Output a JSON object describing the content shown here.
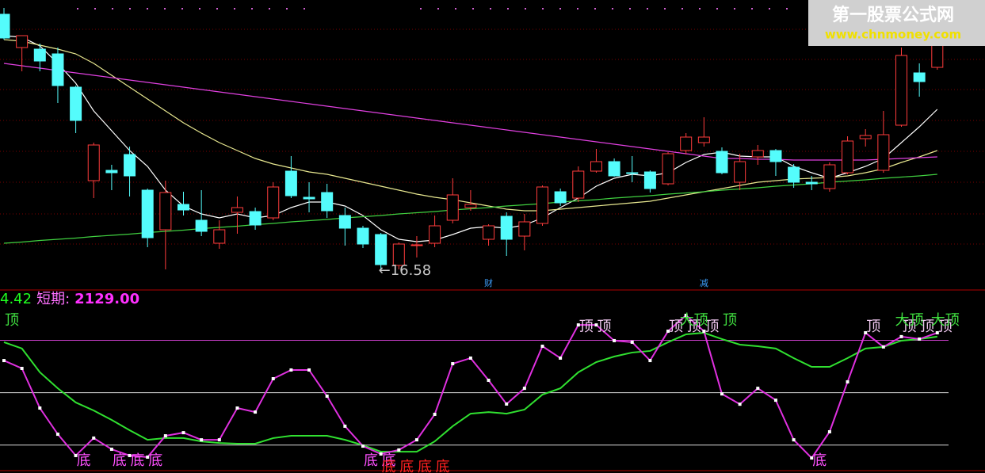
{
  "watermark": {
    "title": "第一股票公式网",
    "url": "www.chnmoney.com"
  },
  "chart_data": [
    {
      "type": "candlestick",
      "ylim": [
        16.12,
        23.42
      ],
      "up_color": "#ff3c3c",
      "down_color": "#54fcfc",
      "open": [
        23.06,
        22.22,
        22.18,
        22.06,
        21.22,
        18.86,
        19.12,
        19.52,
        18.62,
        17.62,
        18.26,
        17.86,
        17.28,
        18.06,
        18.08,
        17.92,
        19.1,
        18.44,
        18.56,
        17.98,
        17.66,
        17.5,
        16.72,
        17.22,
        17.28,
        17.86,
        18.18,
        17.38,
        17.96,
        17.46,
        17.78,
        18.58,
        18.42,
        19.1,
        19.34,
        19.06,
        19.08,
        18.78,
        19.62,
        19.82,
        19.6,
        18.82,
        19.46,
        19.62,
        19.2,
        18.82,
        18.66,
        19.06,
        19.92,
        19.12,
        20.26,
        21.58,
        21.72
      ],
      "high": [
        23.22,
        22.52,
        22.32,
        22.22,
        21.26,
        19.82,
        19.26,
        19.72,
        18.66,
        18.86,
        18.58,
        18.62,
        17.86,
        18.46,
        18.18,
        18.82,
        19.48,
        18.82,
        18.78,
        18.18,
        17.72,
        17.54,
        17.3,
        17.46,
        17.98,
        18.92,
        18.62,
        17.76,
        18.06,
        18.02,
        18.74,
        18.66,
        19.22,
        19.66,
        19.42,
        19.48,
        19.12,
        19.58,
        20.06,
        20.46,
        19.7,
        19.54,
        19.76,
        19.66,
        19.28,
        18.98,
        19.32,
        19.98,
        20.16,
        20.62,
        22.22,
        21.82,
        22.46
      ],
      "low": [
        22.42,
        21.62,
        21.62,
        20.82,
        20.06,
        18.42,
        18.62,
        18.46,
        17.18,
        16.62,
        17.98,
        17.46,
        17.14,
        17.52,
        17.62,
        17.86,
        18.42,
        18.06,
        17.92,
        17.22,
        17.16,
        16.58,
        16.62,
        16.92,
        17.18,
        17.78,
        18.1,
        17.22,
        16.96,
        17.1,
        17.72,
        18.22,
        18.32,
        19.06,
        18.96,
        18.82,
        18.56,
        18.74,
        19.52,
        19.72,
        19.02,
        18.62,
        19.26,
        18.98,
        18.68,
        18.62,
        18.58,
        19.02,
        19.72,
        19.06,
        20.22,
        20.98,
        21.66
      ],
      "close": [
        22.46,
        22.52,
        21.88,
        21.26,
        20.38,
        19.76,
        19.06,
        18.98,
        17.42,
        18.56,
        18.12,
        17.58,
        17.62,
        18.18,
        17.74,
        18.7,
        18.48,
        18.4,
        18.1,
        17.66,
        17.26,
        16.74,
        17.26,
        17.24,
        17.72,
        18.5,
        18.26,
        17.72,
        17.38,
        17.82,
        18.7,
        18.3,
        19.1,
        19.34,
        18.98,
        19.04,
        18.66,
        19.54,
        19.96,
        19.96,
        19.06,
        19.34,
        19.62,
        19.34,
        18.82,
        18.78,
        19.26,
        19.86,
        20.0,
        20.02,
        22.02,
        21.36,
        22.42
      ],
      "low_label": "←16.58",
      "event_color": "#3ca0ff",
      "event_labels": [
        null,
        null,
        null,
        null,
        null,
        null,
        null,
        null,
        null,
        null,
        null,
        null,
        null,
        null,
        null,
        null,
        null,
        null,
        null,
        null,
        null,
        null,
        null,
        null,
        null,
        null,
        null,
        "财",
        null,
        null,
        null,
        null,
        null,
        null,
        null,
        null,
        null,
        null,
        null,
        "减",
        null,
        null,
        null,
        null,
        null,
        null,
        null,
        null,
        null,
        null,
        null,
        null,
        null
      ],
      "series": [
        {
          "color": "#ffffff",
          "values": [
            22.52,
            22.48,
            22.26,
            21.82,
            21.32,
            20.62,
            20.12,
            19.62,
            19.22,
            18.62,
            18.22,
            18.02,
            17.92,
            18.02,
            17.92,
            17.98,
            18.18,
            18.32,
            18.32,
            18.22,
            17.98,
            17.62,
            17.38,
            17.32,
            17.36,
            17.5,
            17.66,
            17.7,
            17.66,
            17.74,
            17.92,
            18.18,
            18.42,
            18.72,
            18.92,
            19.02,
            18.98,
            19.06,
            19.32,
            19.52,
            19.58,
            19.48,
            19.46,
            19.46,
            19.22,
            19.06,
            18.92,
            19.06,
            19.22,
            19.42,
            19.82,
            20.22,
            20.66
          ]
        },
        {
          "color": "#e8e890",
          "values": [
            22.42,
            22.38,
            22.28,
            22.18,
            22.06,
            21.82,
            21.52,
            21.22,
            20.92,
            20.62,
            20.32,
            20.06,
            19.82,
            19.62,
            19.42,
            19.28,
            19.18,
            19.08,
            19.02,
            18.92,
            18.82,
            18.72,
            18.62,
            18.52,
            18.44,
            18.38,
            18.3,
            18.22,
            18.14,
            18.1,
            18.1,
            18.14,
            18.18,
            18.22,
            18.26,
            18.3,
            18.34,
            18.42,
            18.5,
            18.58,
            18.66,
            18.74,
            18.82,
            18.86,
            18.9,
            18.92,
            18.94,
            18.98,
            19.06,
            19.16,
            19.32,
            19.46,
            19.62
          ]
        },
        {
          "color": "#e040e0",
          "values": [
            21.82,
            21.76,
            21.7,
            21.64,
            21.58,
            21.52,
            21.46,
            21.4,
            21.34,
            21.28,
            21.22,
            21.16,
            21.1,
            21.04,
            20.98,
            20.92,
            20.86,
            20.8,
            20.74,
            20.68,
            20.62,
            20.56,
            20.5,
            20.44,
            20.38,
            20.32,
            20.26,
            20.2,
            20.14,
            20.08,
            20.02,
            19.96,
            19.9,
            19.84,
            19.78,
            19.72,
            19.66,
            19.6,
            19.54,
            19.48,
            19.42,
            19.42,
            19.4,
            19.4,
            19.38,
            19.38,
            19.38,
            19.38,
            19.38,
            19.4,
            19.42,
            19.44,
            19.46
          ]
        },
        {
          "color": "#40d040",
          "values": [
            17.28,
            17.31,
            17.35,
            17.38,
            17.41,
            17.45,
            17.48,
            17.51,
            17.55,
            17.58,
            17.61,
            17.65,
            17.68,
            17.71,
            17.75,
            17.78,
            17.82,
            17.85,
            17.88,
            17.92,
            17.95,
            17.98,
            18.02,
            18.05,
            18.08,
            18.12,
            18.15,
            18.18,
            18.22,
            18.25,
            18.28,
            18.32,
            18.35,
            18.38,
            18.42,
            18.45,
            18.48,
            18.52,
            18.55,
            18.58,
            18.62,
            18.65,
            18.68,
            18.72,
            18.75,
            18.78,
            18.82,
            18.85,
            18.88,
            18.92,
            18.95,
            18.98,
            19.02
          ]
        }
      ]
    },
    {
      "type": "line",
      "ylim": [
        4,
        107
      ],
      "header_texts": [
        "4.42",
        "短期:",
        "2129.00"
      ],
      "header_colors": [
        "#20ff20",
        "#ff70ff",
        "#ff30ff"
      ],
      "levels": [
        80,
        50,
        20
      ],
      "level_colors": [
        "#d040d0",
        "#d8d8d8",
        "#d8d8d8"
      ],
      "series": [
        {
          "color": "#e030e0",
          "markers": true,
          "values": [
            68.4,
            63.9,
            41.2,
            26.2,
            14.0,
            24.0,
            17.6,
            14.0,
            13.1,
            25.3,
            27.1,
            23.0,
            23.0,
            41.2,
            38.9,
            58.0,
            63.0,
            63.0,
            48.0,
            30.8,
            19.4,
            14.9,
            17.2,
            23.0,
            37.6,
            66.6,
            69.8,
            57.1,
            43.5,
            52.5,
            76.6,
            69.8,
            88.8,
            88.8,
            79.8,
            78.9,
            68.4,
            85.2,
            94.3,
            85.2,
            49.3,
            43.4,
            52.5,
            45.7,
            23.0,
            12.6,
            27.6,
            56.2,
            84.3,
            76.2,
            82.1,
            80.7,
            84.3
          ]
        },
        {
          "color": "#30e030",
          "markers": false,
          "values": [
            78.9,
            75.3,
            61.7,
            52.5,
            44.4,
            39.8,
            34.4,
            28.5,
            23.0,
            24.0,
            24.0,
            22.1,
            21.2,
            20.8,
            20.8,
            24.0,
            25.3,
            25.3,
            25.3,
            23.0,
            19.9,
            16.2,
            16.2,
            16.2,
            22.1,
            30.8,
            38.0,
            38.9,
            38.0,
            40.3,
            48.9,
            52.5,
            61.7,
            67.5,
            70.7,
            73.0,
            73.9,
            78.9,
            83.4,
            84.3,
            80.7,
            77.5,
            76.6,
            75.3,
            69.8,
            64.8,
            64.8,
            69.8,
            75.3,
            76.2,
            79.8,
            80.7,
            82.1
          ]
        }
      ],
      "top_label_color": "#f0c8f0",
      "top_labels": [
        null,
        null,
        null,
        null,
        null,
        null,
        null,
        null,
        null,
        null,
        null,
        null,
        null,
        null,
        null,
        null,
        null,
        null,
        null,
        null,
        null,
        null,
        null,
        null,
        null,
        null,
        null,
        null,
        null,
        null,
        null,
        null,
        "顶",
        "顶",
        null,
        null,
        null,
        "顶",
        "顶",
        "顶",
        null,
        null,
        null,
        null,
        null,
        null,
        null,
        null,
        "顶",
        null,
        "顶",
        "顶",
        "顶"
      ],
      "big_label_color": "#40e040",
      "big_labels": [
        "顶",
        null,
        null,
        null,
        null,
        null,
        null,
        null,
        null,
        null,
        null,
        null,
        null,
        null,
        null,
        null,
        null,
        null,
        null,
        null,
        null,
        null,
        null,
        null,
        null,
        null,
        null,
        null,
        null,
        null,
        null,
        null,
        null,
        null,
        null,
        null,
        null,
        null,
        "大顶",
        null,
        "顶",
        null,
        null,
        null,
        null,
        null,
        null,
        null,
        null,
        null,
        "大顶",
        null,
        "大顶"
      ],
      "bottom_label_color": "#ff50ff",
      "bottom_labels": [
        null,
        null,
        null,
        null,
        "底",
        null,
        "底",
        "底",
        "底",
        null,
        null,
        null,
        null,
        null,
        null,
        null,
        null,
        null,
        null,
        null,
        "底",
        "底",
        null,
        null,
        null,
        null,
        null,
        null,
        null,
        null,
        null,
        null,
        null,
        null,
        null,
        null,
        null,
        null,
        null,
        null,
        null,
        null,
        null,
        null,
        null,
        "底",
        null,
        null,
        null,
        null,
        null,
        null,
        null
      ],
      "red_label_color": "#ff2020",
      "red_labels": [
        null,
        null,
        null,
        null,
        null,
        null,
        null,
        null,
        null,
        null,
        null,
        null,
        null,
        null,
        null,
        null,
        null,
        null,
        null,
        null,
        null,
        "底",
        "底",
        "底",
        "底",
        null,
        null,
        null,
        null,
        null,
        null,
        null,
        null,
        null,
        null,
        null,
        null,
        null,
        null,
        null,
        null,
        null,
        null,
        null,
        null,
        null,
        null,
        null,
        null,
        null,
        null,
        null,
        null
      ]
    }
  ]
}
